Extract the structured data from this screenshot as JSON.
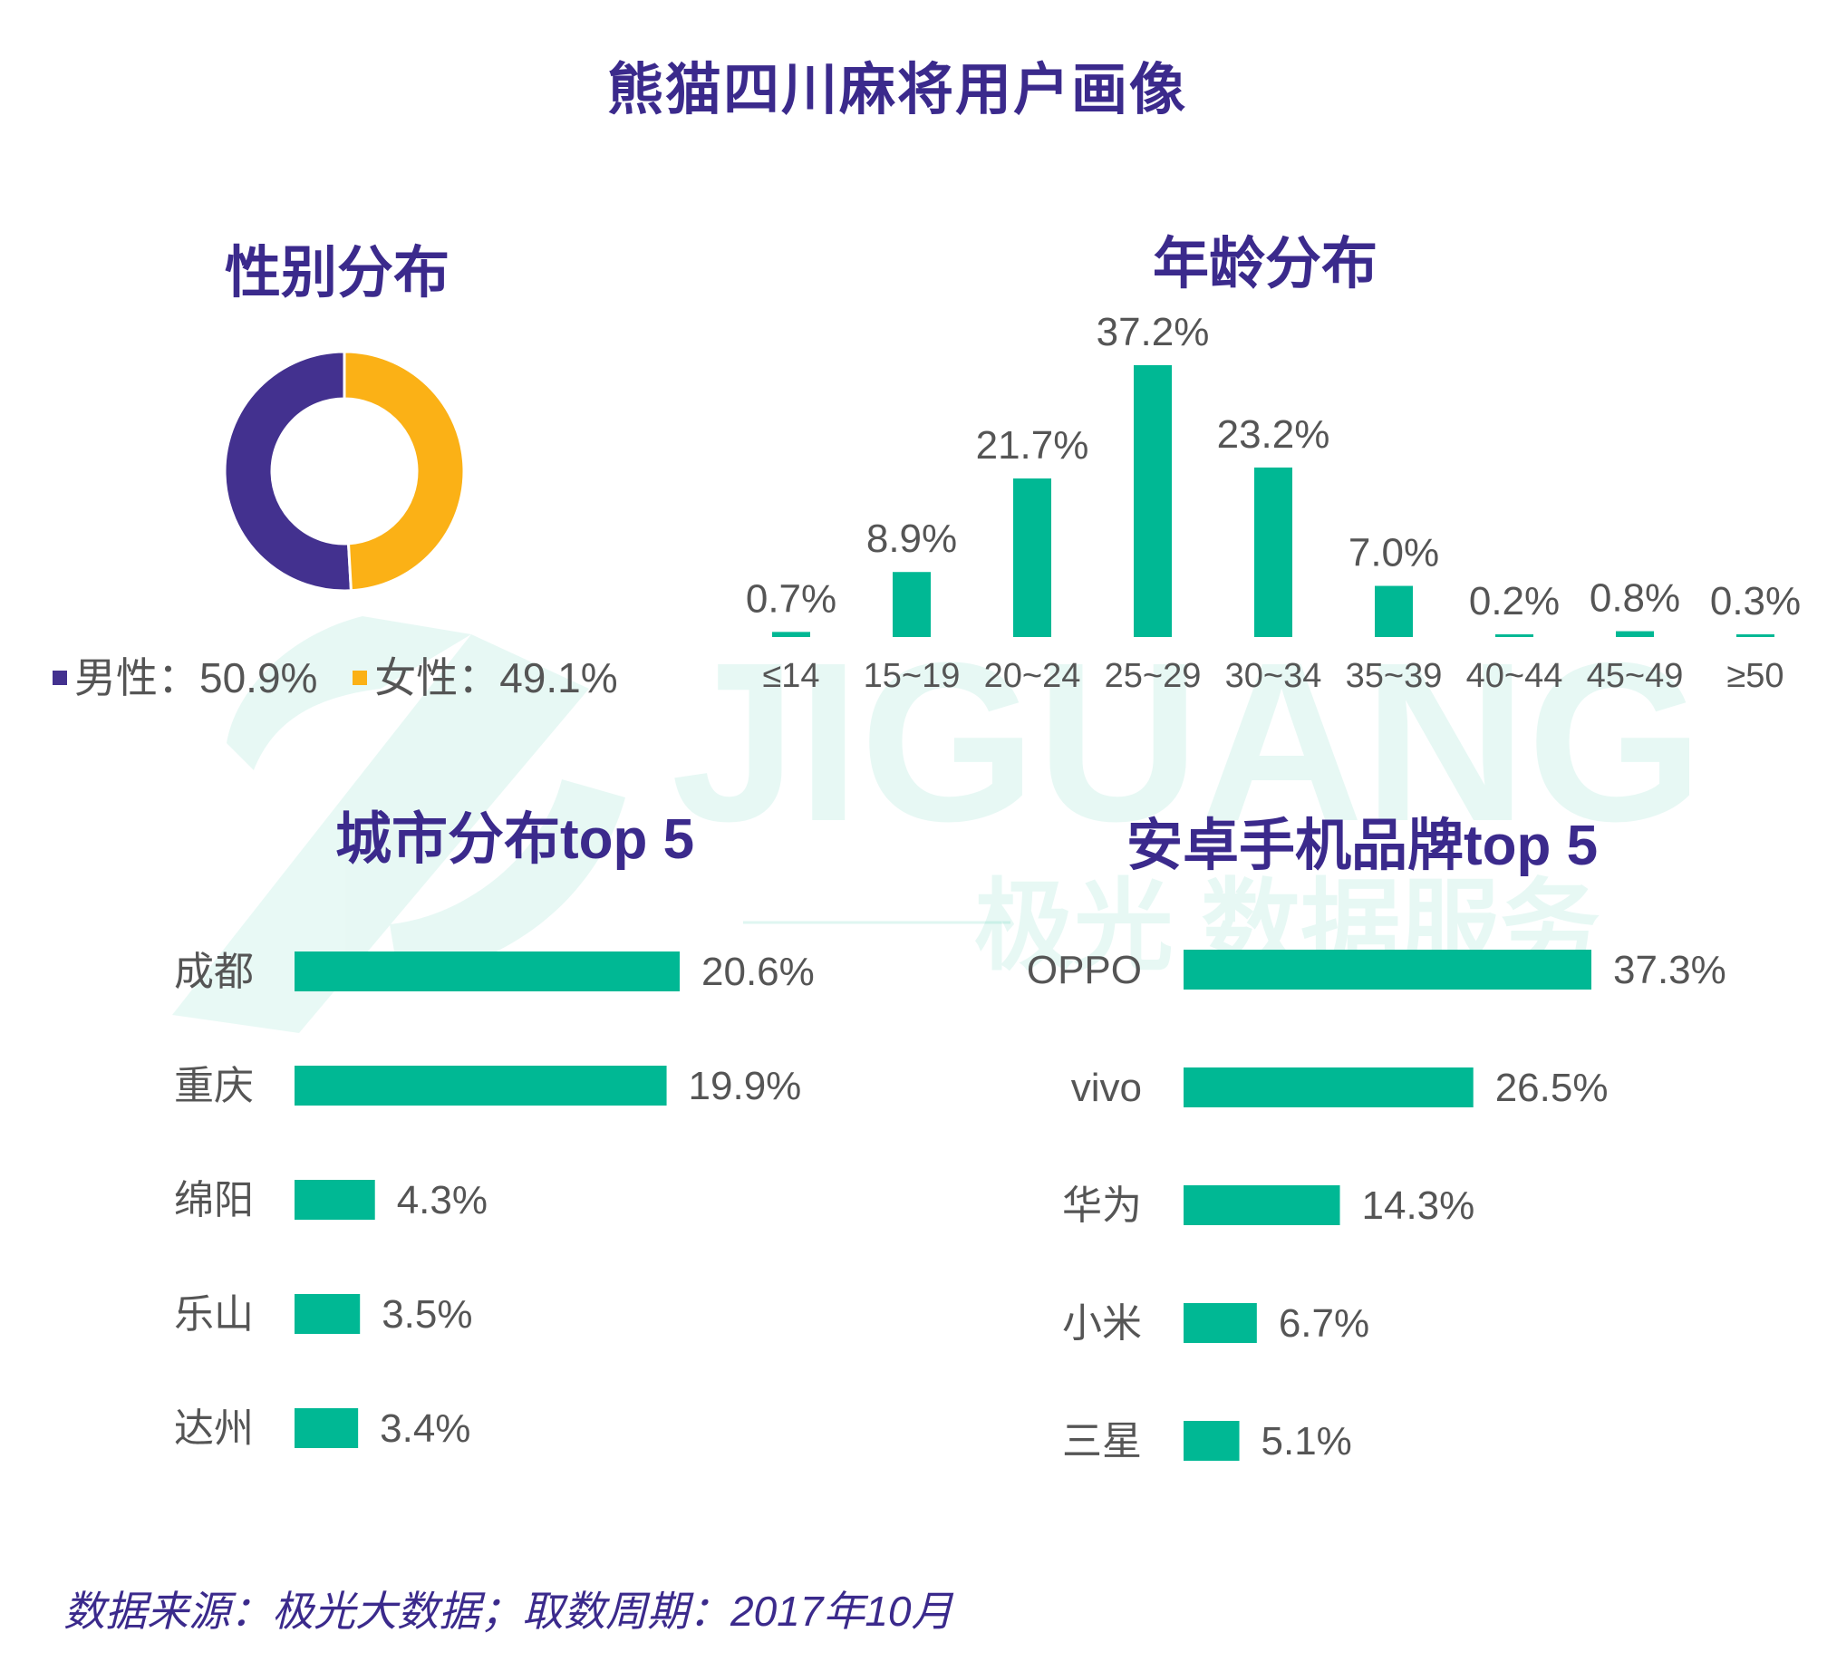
{
  "title": "熊猫四川麻将用户画像",
  "footer": "数据来源：极光大数据；取数周期：2017年10月",
  "watermark": {
    "brand": "JIGUANG",
    "tagline": "极光 数据服务"
  },
  "colors": {
    "accent": "#3b2a8c",
    "male": "#43318f",
    "female": "#fbb116",
    "bar": "#00b894",
    "label": "#555555"
  },
  "chart_data": [
    {
      "type": "pie",
      "title": "性别分布",
      "categories": [
        "男性",
        "女性"
      ],
      "values": [
        50.9,
        49.1
      ],
      "legend": [
        {
          "label": "男性：50.9%"
        },
        {
          "label": "女性：49.1%"
        }
      ]
    },
    {
      "type": "bar",
      "title": "年龄分布",
      "categories": [
        "≤14",
        "15~19",
        "20~24",
        "25~29",
        "30~34",
        "35~39",
        "40~44",
        "45~49",
        "≥50"
      ],
      "values": [
        0.7,
        8.9,
        21.7,
        37.2,
        23.2,
        7.0,
        0.2,
        0.8,
        0.3
      ],
      "labels": [
        "0.7%",
        "8.9%",
        "21.7%",
        "37.2%",
        "23.2%",
        "7.0%",
        "0.2%",
        "0.8%",
        "0.3%"
      ]
    },
    {
      "type": "bar",
      "orientation": "horizontal",
      "title": "城市分布top 5",
      "categories": [
        "成都",
        "重庆",
        "绵阳",
        "乐山",
        "达州"
      ],
      "values": [
        20.6,
        19.9,
        4.3,
        3.5,
        3.4
      ],
      "labels": [
        "20.6%",
        "19.9%",
        "4.3%",
        "3.5%",
        "3.4%"
      ]
    },
    {
      "type": "bar",
      "orientation": "horizontal",
      "title": "安卓手机品牌top 5",
      "categories": [
        "OPPO",
        "vivo",
        "华为",
        "小米",
        "三星"
      ],
      "values": [
        37.3,
        26.5,
        14.3,
        6.7,
        5.1
      ],
      "labels": [
        "37.3%",
        "26.5%",
        "14.3%",
        "6.7%",
        "5.1%"
      ]
    }
  ]
}
